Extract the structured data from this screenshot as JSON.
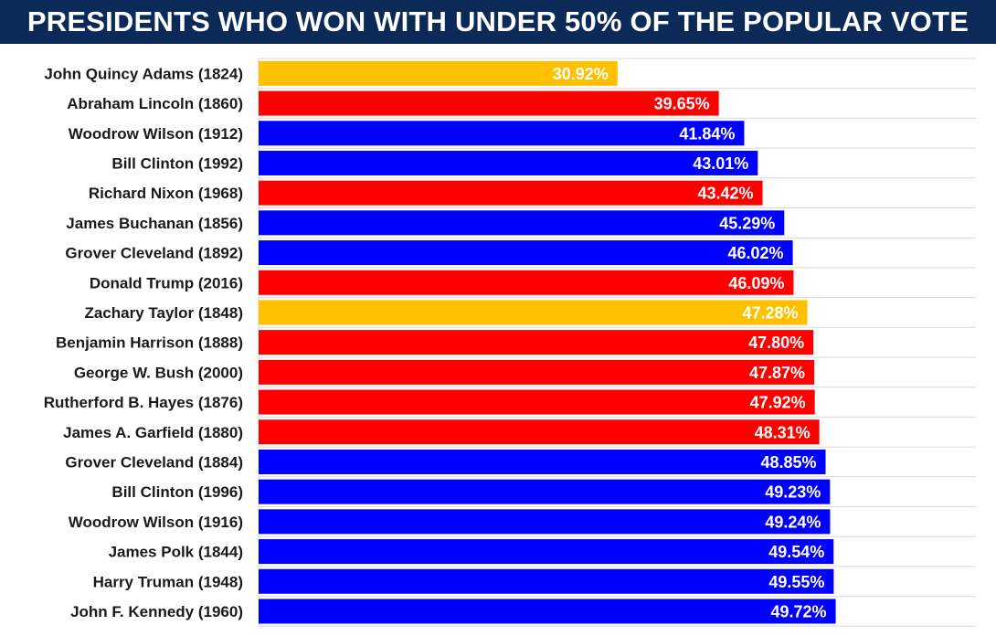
{
  "chart_data": {
    "type": "bar",
    "orientation": "horizontal",
    "title": "PRESIDENTS WHO WON WITH UNDER 50% OF THE POPULAR VOTE",
    "xlabel": "",
    "ylabel": "",
    "xlim": [
      0,
      61.8
    ],
    "grid": true,
    "legend": "none",
    "colors": {
      "republican": "#ff0000",
      "democrat": "#0000ff",
      "other": "#ffc000",
      "title_bg": "#0b2a57"
    },
    "bars": [
      {
        "category": "John Quincy Adams (1824)",
        "value": 30.92,
        "label": "30.92%",
        "party": "other"
      },
      {
        "category": "Abraham Lincoln (1860)",
        "value": 39.65,
        "label": "39.65%",
        "party": "republican"
      },
      {
        "category": "Woodrow Wilson (1912)",
        "value": 41.84,
        "label": "41.84%",
        "party": "democrat"
      },
      {
        "category": "Bill Clinton (1992)",
        "value": 43.01,
        "label": "43.01%",
        "party": "democrat"
      },
      {
        "category": "Richard Nixon (1968)",
        "value": 43.42,
        "label": "43.42%",
        "party": "republican"
      },
      {
        "category": "James Buchanan (1856)",
        "value": 45.29,
        "label": "45.29%",
        "party": "democrat"
      },
      {
        "category": "Grover Cleveland (1892)",
        "value": 46.02,
        "label": "46.02%",
        "party": "democrat"
      },
      {
        "category": "Donald Trump (2016)",
        "value": 46.09,
        "label": "46.09%",
        "party": "republican"
      },
      {
        "category": "Zachary Taylor (1848)",
        "value": 47.28,
        "label": "47.28%",
        "party": "other"
      },
      {
        "category": "Benjamin Harrison (1888)",
        "value": 47.8,
        "label": "47.80%",
        "party": "republican"
      },
      {
        "category": "George W. Bush (2000)",
        "value": 47.87,
        "label": "47.87%",
        "party": "republican"
      },
      {
        "category": "Rutherford B. Hayes (1876)",
        "value": 47.92,
        "label": "47.92%",
        "party": "republican"
      },
      {
        "category": "James A. Garfield (1880)",
        "value": 48.31,
        "label": "48.31%",
        "party": "republican"
      },
      {
        "category": "Grover Cleveland (1884)",
        "value": 48.85,
        "label": "48.85%",
        "party": "democrat"
      },
      {
        "category": "Bill Clinton (1996)",
        "value": 49.23,
        "label": "49.23%",
        "party": "democrat"
      },
      {
        "category": "Woodrow Wilson (1916)",
        "value": 49.24,
        "label": "49.24%",
        "party": "democrat"
      },
      {
        "category": "James Polk (1844)",
        "value": 49.54,
        "label": "49.54%",
        "party": "democrat"
      },
      {
        "category": "Harry Truman (1948)",
        "value": 49.55,
        "label": "49.55%",
        "party": "democrat"
      },
      {
        "category": "John F. Kennedy (1960)",
        "value": 49.72,
        "label": "49.72%",
        "party": "democrat"
      }
    ]
  }
}
